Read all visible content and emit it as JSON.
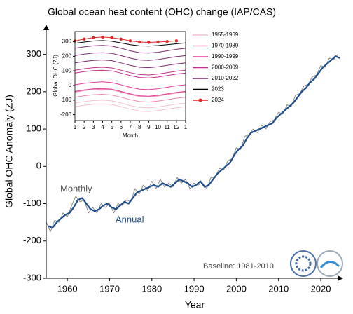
{
  "chart_data": [
    {
      "type": "line",
      "title": "Global ocean heat content (OHC) change (IAP/CAS)",
      "xlabel": "Year",
      "ylabel": "Global OHC Anomaly (ZJ)",
      "xlim": [
        1955,
        2025.3
      ],
      "xticks": [
        1960,
        1970,
        1980,
        1990,
        2000,
        2010,
        2020
      ],
      "ylim": [
        -300,
        380
      ],
      "yticks": [
        -300,
        -200,
        -100,
        0,
        100,
        200,
        300
      ],
      "annotations": [
        "Monthly",
        "Annual",
        "Baseline: 1981-2010"
      ],
      "series": [
        {
          "name": "Monthly",
          "color": "#8a8a8a",
          "x": [
            1955,
            1956,
            1957,
            1958,
            1959,
            1960,
            1961,
            1962,
            1963,
            1964,
            1965,
            1966,
            1967,
            1968,
            1969,
            1970,
            1971,
            1972,
            1973,
            1974,
            1975,
            1976,
            1977,
            1978,
            1979,
            1980,
            1981,
            1982,
            1983,
            1984,
            1985,
            1986,
            1987,
            1988,
            1989,
            1990,
            1991,
            1992,
            1993,
            1994,
            1995,
            1996,
            1997,
            1998,
            1999,
            2000,
            2001,
            2002,
            2003,
            2004,
            2005,
            2006,
            2007,
            2008,
            2009,
            2010,
            2011,
            2012,
            2013,
            2014,
            2015,
            2016,
            2017,
            2018,
            2019,
            2020,
            2021,
            2022,
            2023,
            2024
          ],
          "values": [
            -150,
            -175,
            -145,
            -150,
            -125,
            -135,
            -105,
            -80,
            -95,
            -90,
            -125,
            -110,
            -125,
            -100,
            -110,
            -100,
            -125,
            -100,
            -105,
            -90,
            -95,
            -60,
            -75,
            -50,
            -65,
            -40,
            -60,
            -35,
            -55,
            -45,
            -55,
            -30,
            -45,
            -35,
            -60,
            -45,
            -50,
            -45,
            -60,
            -30,
            -30,
            -5,
            -10,
            15,
            20,
            50,
            45,
            80,
            85,
            100,
            90,
            110,
            100,
            120,
            125,
            145,
            140,
            165,
            160,
            190,
            195,
            215,
            220,
            240,
            245,
            270,
            265,
            290,
            285,
            300
          ]
        },
        {
          "name": "Annual",
          "color": "#1f4e8c",
          "x": [
            1955.5,
            1956.5,
            1957.5,
            1958.5,
            1959.5,
            1960.5,
            1961.5,
            1962.5,
            1963.5,
            1964.5,
            1965.5,
            1966.5,
            1967.5,
            1968.5,
            1969.5,
            1970.5,
            1971.5,
            1972.5,
            1973.5,
            1974.5,
            1975.5,
            1976.5,
            1977.5,
            1978.5,
            1979.5,
            1980.5,
            1981.5,
            1982.5,
            1983.5,
            1984.5,
            1985.5,
            1986.5,
            1987.5,
            1988.5,
            1989.5,
            1990.5,
            1991.5,
            1992.5,
            1993.5,
            1994.5,
            1995.5,
            1996.5,
            1997.5,
            1998.5,
            1999.5,
            2000.5,
            2001.5,
            2002.5,
            2003.5,
            2004.5,
            2005.5,
            2006.5,
            2007.5,
            2008.5,
            2009.5,
            2010.5,
            2011.5,
            2012.5,
            2013.5,
            2014.5,
            2015.5,
            2016.5,
            2017.5,
            2018.5,
            2019.5,
            2020.5,
            2021.5,
            2022.5,
            2023.5,
            2024.5
          ],
          "values": [
            -160,
            -165,
            -150,
            -140,
            -130,
            -125,
            -110,
            -90,
            -85,
            -100,
            -115,
            -120,
            -115,
            -105,
            -100,
            -110,
            -115,
            -105,
            -95,
            -100,
            -85,
            -70,
            -65,
            -60,
            -55,
            -50,
            -55,
            -45,
            -50,
            -55,
            -45,
            -35,
            -40,
            -45,
            -55,
            -50,
            -40,
            -55,
            -50,
            -35,
            -20,
            -10,
            0,
            10,
            30,
            45,
            55,
            75,
            90,
            95,
            100,
            105,
            110,
            115,
            130,
            140,
            150,
            160,
            170,
            185,
            200,
            210,
            225,
            235,
            250,
            265,
            275,
            285,
            295,
            290
          ]
        }
      ]
    },
    {
      "type": "line",
      "xlabel": "Month",
      "ylabel": "Global OHC (ZJ)",
      "xlim": [
        1,
        13
      ],
      "xticks": [
        1,
        2,
        3,
        4,
        5,
        6,
        7,
        8,
        9,
        10,
        11,
        12,
        {
          "value": 13,
          "label": "1"
        }
      ],
      "ylim": [
        -240,
        370
      ],
      "yticks": [
        -200,
        -100,
        0,
        100,
        200,
        300
      ],
      "series": [
        {
          "name": "1955-1969",
          "color": "#f5c3cf",
          "lines": [
            [
              -145,
              -135,
              -128,
              -125,
              -130,
              -145,
              -162,
              -175,
              -178,
              -172,
              -162,
              -152,
              -145
            ],
            [
              -120,
              -110,
              -103,
              -100,
              -105,
              -120,
              -137,
              -150,
              -153,
              -147,
              -137,
              -127,
              -120
            ]
          ]
        },
        {
          "name": "1970-1989",
          "color": "#f08aa8",
          "lines": [
            [
              -80,
              -70,
              -63,
              -60,
              -65,
              -80,
              -97,
              -110,
              -113,
              -107,
              -97,
              -87,
              -80
            ],
            [
              -45,
              -35,
              -28,
              -25,
              -30,
              -45,
              -62,
              -75,
              -78,
              -72,
              -62,
              -52,
              -45
            ]
          ]
        },
        {
          "name": "1990-1999",
          "color": "#e0409a",
          "lines": [
            [
              -40,
              -30,
              -23,
              -20,
              -25,
              -40,
              -57,
              -70,
              -73,
              -67,
              -57,
              -47,
              -40
            ],
            [
              5,
              15,
              22,
              25,
              20,
              5,
              -12,
              -25,
              -28,
              -22,
              -12,
              -2,
              5
            ]
          ]
        },
        {
          "name": "2000-2009",
          "color": "#c0308c",
          "lines": [
            [
              85,
              95,
              102,
              105,
              100,
              85,
              68,
              55,
              52,
              58,
              68,
              78,
              85
            ],
            [
              105,
              115,
              122,
              125,
              120,
              105,
              88,
              75,
              72,
              78,
              88,
              98,
              105
            ]
          ]
        },
        {
          "name": "2010-2022",
          "color": "#7a2c6a",
          "lines": [
            [
              155,
              165,
              172,
              175,
              170,
              155,
              138,
              125,
              122,
              128,
              138,
              148,
              155
            ],
            [
              205,
              215,
              222,
              225,
              220,
              205,
              188,
              175,
              172,
              178,
              188,
              198,
              205
            ],
            [
              255,
              265,
              272,
              275,
              270,
              255,
              238,
              225,
              222,
              228,
              238,
              248,
              255
            ]
          ]
        },
        {
          "name": "2023",
          "color": "#000000",
          "lines": [
            [
              290,
              298,
              305,
              308,
              303,
              292,
              280,
              272,
              270,
              274,
              280,
              286,
              292
            ]
          ]
        },
        {
          "name": "2024",
          "color": "#e02828",
          "marker": true,
          "lines": [
            [
              305,
              318,
              328,
              332,
              328,
              318,
              306,
              298,
              296,
              298,
              302,
              306
            ]
          ]
        }
      ]
    }
  ]
}
